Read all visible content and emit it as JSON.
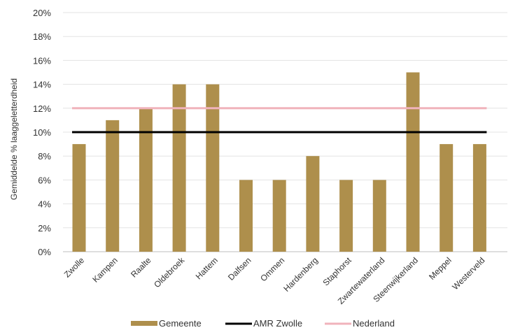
{
  "chart_data": {
    "type": "bar",
    "title": "",
    "xlabel": "",
    "ylabel": "Gemiddelde % laaggeletterdheid",
    "ylim": [
      0,
      20
    ],
    "y_tick_step": 2,
    "y_tick_format": "percent",
    "grid": true,
    "legend_position": "bottom",
    "categories": [
      "Zwolle",
      "Kampen",
      "Raalte",
      "Oldebroek",
      "Hattem",
      "Dalfsen",
      "Ommen",
      "Hardenberg",
      "Staphorst",
      "Zwartewaterland",
      "Steenwijkerland",
      "Meppel",
      "Westerveld"
    ],
    "series": [
      {
        "name": "Gemeente",
        "kind": "bar",
        "color": "#ae8f4c",
        "values": [
          9,
          11,
          12,
          14,
          14,
          6,
          6,
          8,
          6,
          6,
          15,
          9,
          9
        ]
      }
    ],
    "reference_lines": [
      {
        "name": "AMR Zwolle",
        "value": 10,
        "color": "#000000"
      },
      {
        "name": "Nederland",
        "value": 12,
        "color": "#f0b3bb"
      }
    ]
  }
}
